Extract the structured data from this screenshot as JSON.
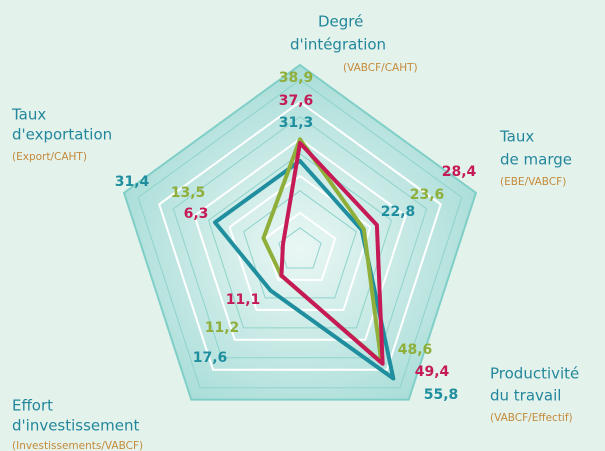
{
  "chart_data": {
    "type": "radar",
    "axes": [
      {
        "title": [
          "Degré",
          "d'intégration"
        ],
        "subtitle": "(VABCF/CAHT)"
      },
      {
        "title": [
          "Taux",
          "de marge"
        ],
        "subtitle": "(EBE/VABCF)"
      },
      {
        "title": [
          "Productivité",
          "du travail"
        ],
        "subtitle": "(VABCF/Effectif)"
      },
      {
        "title": [
          "Effort",
          "d'investissement"
        ],
        "subtitle": "(Investissements/VABCF)"
      },
      {
        "title": [
          "Taux",
          "d'exportation"
        ],
        "subtitle": "(Export/CAHT)"
      }
    ],
    "series": [
      {
        "color": "#1f8e9e",
        "values": [
          31.3,
          22.8,
          55.8,
          17.6,
          31.4
        ],
        "value_labels": [
          "31,3",
          "22,8",
          "55,8",
          "17,6",
          "31,4"
        ]
      },
      {
        "color": "#8fae3a",
        "values": [
          38.9,
          23.6,
          48.6,
          11.2,
          13.5
        ],
        "value_labels": [
          "38,9",
          "23,6",
          "48,6",
          "11,2",
          "13,5"
        ]
      },
      {
        "color": "#c51a55",
        "values": [
          37.6,
          28.4,
          49.4,
          11.1,
          6.3
        ],
        "value_labels": [
          "37,6",
          "28,4",
          "49,4",
          "11,1",
          "6,3"
        ]
      }
    ],
    "rlim": [
      0,
      65
    ]
  }
}
